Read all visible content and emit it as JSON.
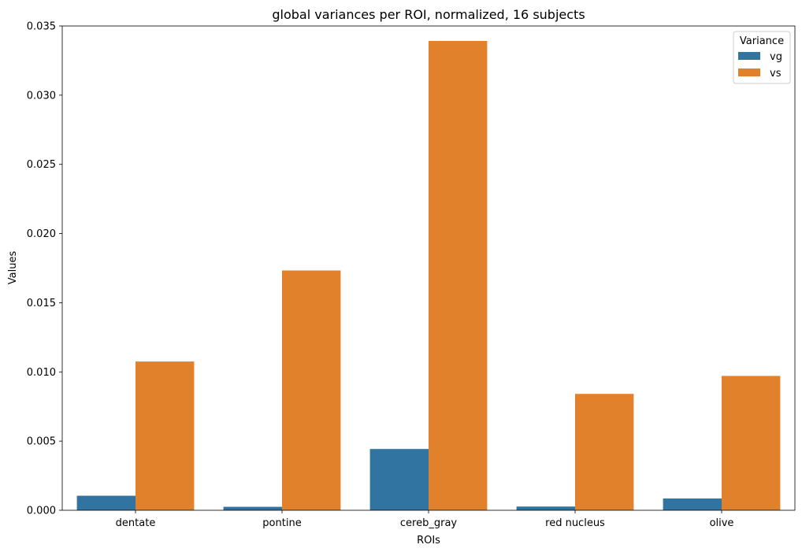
{
  "chart_data": {
    "type": "bar",
    "title": "global variances per ROI, normalized, 16 subjects",
    "xlabel": "ROIs",
    "ylabel": "Values",
    "categories": [
      "dentate",
      "pontine",
      "cereb_gray",
      "red nucleus",
      "olive"
    ],
    "series": [
      {
        "name": "vg",
        "color": "#3274a1",
        "values": [
          0.00105,
          0.00025,
          0.00443,
          0.00027,
          0.00085
        ]
      },
      {
        "name": "vs",
        "color": "#e1812c",
        "values": [
          0.01075,
          0.01733,
          0.03392,
          0.00841,
          0.00971
        ]
      }
    ],
    "ylim": [
      0,
      0.035
    ],
    "yticks": [
      "0.000",
      "0.005",
      "0.010",
      "0.015",
      "0.020",
      "0.025",
      "0.030",
      "0.035"
    ],
    "grid": false,
    "legend": {
      "title": "Variance",
      "position": "top-right"
    }
  }
}
